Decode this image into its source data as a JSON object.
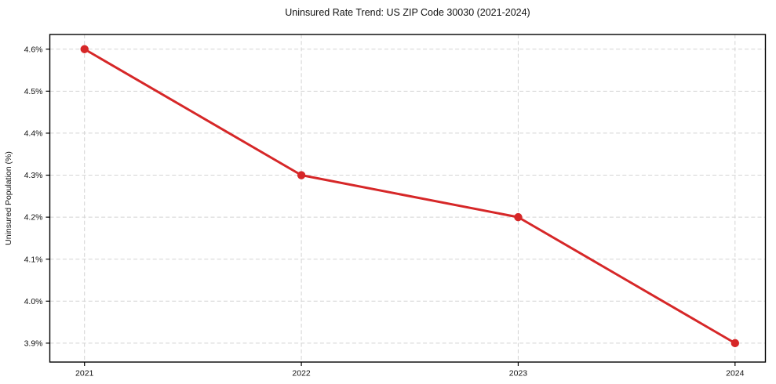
{
  "chart_data": {
    "type": "line",
    "title": "Uninsured Rate Trend: US ZIP Code 30030 (2021-2024)",
    "xlabel": "",
    "ylabel": "Uninsured Population (%)",
    "x": [
      2021,
      2022,
      2023,
      2024
    ],
    "xtick_labels": [
      "2021",
      "2022",
      "2023",
      "2024"
    ],
    "values": [
      4.6,
      4.3,
      4.2,
      3.9
    ],
    "yticks": [
      3.9,
      4.0,
      4.1,
      4.2,
      4.3,
      4.4,
      4.5,
      4.6
    ],
    "ytick_labels": [
      "3.9%",
      "4.0%",
      "4.1%",
      "4.2%",
      "4.3%",
      "4.4%",
      "4.5%",
      "4.6%"
    ],
    "ylim": [
      3.855,
      4.635
    ],
    "xlim": [
      2020.84,
      2024.14
    ],
    "grid": true,
    "legend": false,
    "line_color": "#d62728",
    "grid_color": "#d3d3d3",
    "axis_color": "#000000",
    "background": "#ffffff"
  }
}
